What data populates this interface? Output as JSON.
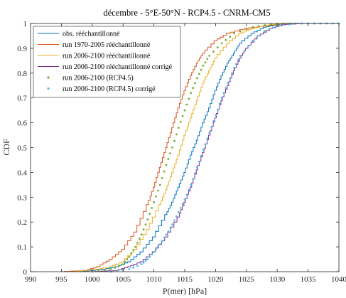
{
  "chart_data": {
    "type": "line",
    "title": "décembre - 5°E-50°N - RCP4.5 - CNRM-CM5",
    "xlabel": "P(mer) [hPa]",
    "ylabel": "CDF",
    "xlim": [
      990,
      1040
    ],
    "ylim": [
      0,
      1
    ],
    "xticks": [
      "990",
      "995",
      "1000",
      "1005",
      "1010",
      "1015",
      "1020",
      "1025",
      "1030",
      "1035",
      "1040"
    ],
    "yticks": [
      "0",
      "0.1",
      "0.2",
      "0.3",
      "0.4",
      "0.5",
      "0.6",
      "0.7",
      "0.8",
      "0.9",
      "1"
    ],
    "grid": false,
    "legend_position": "top-left",
    "series": [
      {
        "name": "obs. rééchantillonné",
        "style": "solid",
        "color": "#0072BD",
        "points": [
          [
            998,
            0
          ],
          [
            1002,
            0.01
          ],
          [
            1004,
            0.02
          ],
          [
            1006,
            0.04
          ],
          [
            1008,
            0.08
          ],
          [
            1010,
            0.14
          ],
          [
            1012,
            0.23
          ],
          [
            1013,
            0.28
          ],
          [
            1014,
            0.34
          ],
          [
            1015,
            0.4
          ],
          [
            1016,
            0.47
          ],
          [
            1017,
            0.53
          ],
          [
            1018,
            0.6
          ],
          [
            1019,
            0.66
          ],
          [
            1020,
            0.73
          ],
          [
            1021,
            0.79
          ],
          [
            1022,
            0.84
          ],
          [
            1023,
            0.88
          ],
          [
            1024,
            0.92
          ],
          [
            1026,
            0.96
          ],
          [
            1028,
            0.985
          ],
          [
            1030,
            0.995
          ],
          [
            1033,
            1.0
          ]
        ]
      },
      {
        "name": "run 1970-2005 rééchantillonné",
        "style": "solid",
        "color": "#D95319",
        "points": [
          [
            995,
            0
          ],
          [
            999,
            0.005
          ],
          [
            1001,
            0.02
          ],
          [
            1003,
            0.05
          ],
          [
            1005,
            0.09
          ],
          [
            1007,
            0.16
          ],
          [
            1009,
            0.27
          ],
          [
            1010,
            0.34
          ],
          [
            1011,
            0.42
          ],
          [
            1012,
            0.5
          ],
          [
            1013,
            0.58
          ],
          [
            1014,
            0.66
          ],
          [
            1015,
            0.73
          ],
          [
            1016,
            0.79
          ],
          [
            1017,
            0.84
          ],
          [
            1018,
            0.88
          ],
          [
            1020,
            0.93
          ],
          [
            1022,
            0.96
          ],
          [
            1025,
            0.98
          ],
          [
            1028,
            0.99
          ],
          [
            1031,
            1.0
          ]
        ]
      },
      {
        "name": "run 2006-2100 rééchantillonné",
        "style": "solid",
        "color": "#EDB120",
        "points": [
          [
            997,
            0
          ],
          [
            1001,
            0.01
          ],
          [
            1003,
            0.02
          ],
          [
            1005,
            0.04
          ],
          [
            1007,
            0.09
          ],
          [
            1009,
            0.17
          ],
          [
            1011,
            0.27
          ],
          [
            1012,
            0.33
          ],
          [
            1013,
            0.4
          ],
          [
            1014,
            0.47
          ],
          [
            1015,
            0.55
          ],
          [
            1016,
            0.62
          ],
          [
            1017,
            0.69
          ],
          [
            1018,
            0.76
          ],
          [
            1019,
            0.81
          ],
          [
            1020,
            0.86
          ],
          [
            1022,
            0.92
          ],
          [
            1024,
            0.96
          ],
          [
            1026,
            0.98
          ],
          [
            1029,
            0.995
          ],
          [
            1032,
            1.0
          ]
        ]
      },
      {
        "name": "run 2006-2100 rééchantillonné corrigé",
        "style": "solid",
        "color": "#7E2F8E",
        "points": [
          [
            1000,
            0
          ],
          [
            1004,
            0.005
          ],
          [
            1006,
            0.02
          ],
          [
            1008,
            0.04
          ],
          [
            1010,
            0.08
          ],
          [
            1012,
            0.14
          ],
          [
            1014,
            0.22
          ],
          [
            1015,
            0.28
          ],
          [
            1016,
            0.34
          ],
          [
            1017,
            0.41
          ],
          [
            1018,
            0.48
          ],
          [
            1019,
            0.55
          ],
          [
            1020,
            0.62
          ],
          [
            1021,
            0.69
          ],
          [
            1022,
            0.75
          ],
          [
            1023,
            0.81
          ],
          [
            1024,
            0.86
          ],
          [
            1025,
            0.9
          ],
          [
            1027,
            0.95
          ],
          [
            1029,
            0.98
          ],
          [
            1031,
            0.995
          ],
          [
            1034,
            1.0
          ]
        ]
      },
      {
        "name": "run 2006-2100 (RCP4.5)",
        "style": "dots",
        "color": "#77AC30",
        "points": [
          [
            1000,
            0
          ],
          [
            1003,
            0.01
          ],
          [
            1005,
            0.03
          ],
          [
            1006,
            0.06
          ],
          [
            1007,
            0.1
          ],
          [
            1008,
            0.15
          ],
          [
            1009,
            0.21
          ],
          [
            1010,
            0.28
          ],
          [
            1011,
            0.35
          ],
          [
            1012,
            0.43
          ],
          [
            1013,
            0.5
          ],
          [
            1014,
            0.58
          ],
          [
            1015,
            0.65
          ],
          [
            1016,
            0.72
          ],
          [
            1017,
            0.78
          ],
          [
            1018,
            0.83
          ],
          [
            1019,
            0.87
          ],
          [
            1021,
            0.92
          ],
          [
            1023,
            0.96
          ],
          [
            1026,
            0.985
          ],
          [
            1029,
            0.997
          ],
          [
            1032,
            1.0
          ]
        ]
      },
      {
        "name": "run 2006-2100 (RCP4.5) corrigé",
        "style": "dots",
        "color": "#4DBEEE",
        "points": [
          [
            1003,
            0
          ],
          [
            1006,
            0.01
          ],
          [
            1008,
            0.03
          ],
          [
            1009,
            0.05
          ],
          [
            1010,
            0.08
          ],
          [
            1011,
            0.11
          ],
          [
            1012,
            0.15
          ],
          [
            1013,
            0.19
          ],
          [
            1014,
            0.24
          ],
          [
            1015,
            0.29
          ],
          [
            1016,
            0.35
          ],
          [
            1017,
            0.42
          ],
          [
            1018,
            0.49
          ],
          [
            1019,
            0.56
          ],
          [
            1020,
            0.63
          ],
          [
            1021,
            0.7
          ],
          [
            1022,
            0.76
          ],
          [
            1023,
            0.82
          ],
          [
            1024,
            0.87
          ],
          [
            1026,
            0.93
          ],
          [
            1028,
            0.97
          ],
          [
            1030,
            0.99
          ],
          [
            1033,
            1.0
          ]
        ]
      }
    ]
  }
}
